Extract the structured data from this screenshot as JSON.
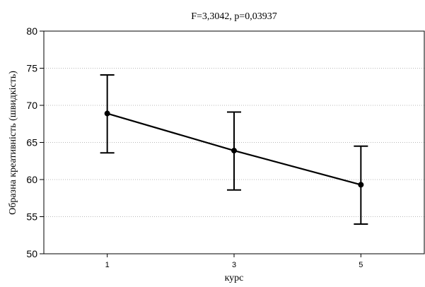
{
  "chart_data": {
    "type": "line",
    "title": "F=3,3042, p=0,03937",
    "xlabel": "курс",
    "ylabel": "Образна креативність (швидкість)",
    "categories": [
      "1",
      "3",
      "5"
    ],
    "series": [
      {
        "values": [
          68.9,
          63.9,
          59.3
        ],
        "lower": [
          63.6,
          58.6,
          54.0
        ],
        "upper": [
          74.1,
          69.1,
          64.5
        ]
      }
    ],
    "ylim": [
      50,
      80
    ],
    "yticks": [
      "50",
      "55",
      "60",
      "65",
      "70",
      "75",
      "80"
    ],
    "grid": true,
    "legend": "none"
  }
}
